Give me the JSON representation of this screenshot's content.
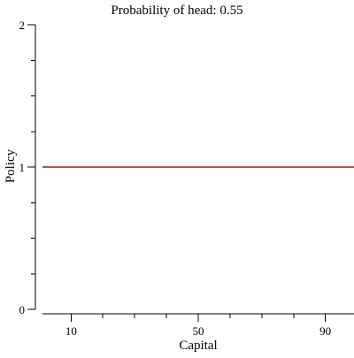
{
  "chart_data": {
    "type": "line",
    "title": "Probability of head: 0.55",
    "xlabel": "Capital",
    "ylabel": "Policy",
    "xlim": [
      1,
      99
    ],
    "ylim": [
      0,
      2
    ],
    "x_major_ticks": [
      10,
      50,
      90
    ],
    "x_minor_ticks": [
      20,
      30,
      40,
      60,
      70,
      80
    ],
    "y_major_ticks": [
      0,
      1,
      2
    ],
    "y_minor_ticks": [
      0.25,
      0.5,
      0.75,
      1.25,
      1.5,
      1.75
    ],
    "grid": false,
    "series": [
      {
        "x": [
          1,
          99
        ],
        "y": [
          1,
          1
        ],
        "color": "#c0504d"
      }
    ]
  }
}
